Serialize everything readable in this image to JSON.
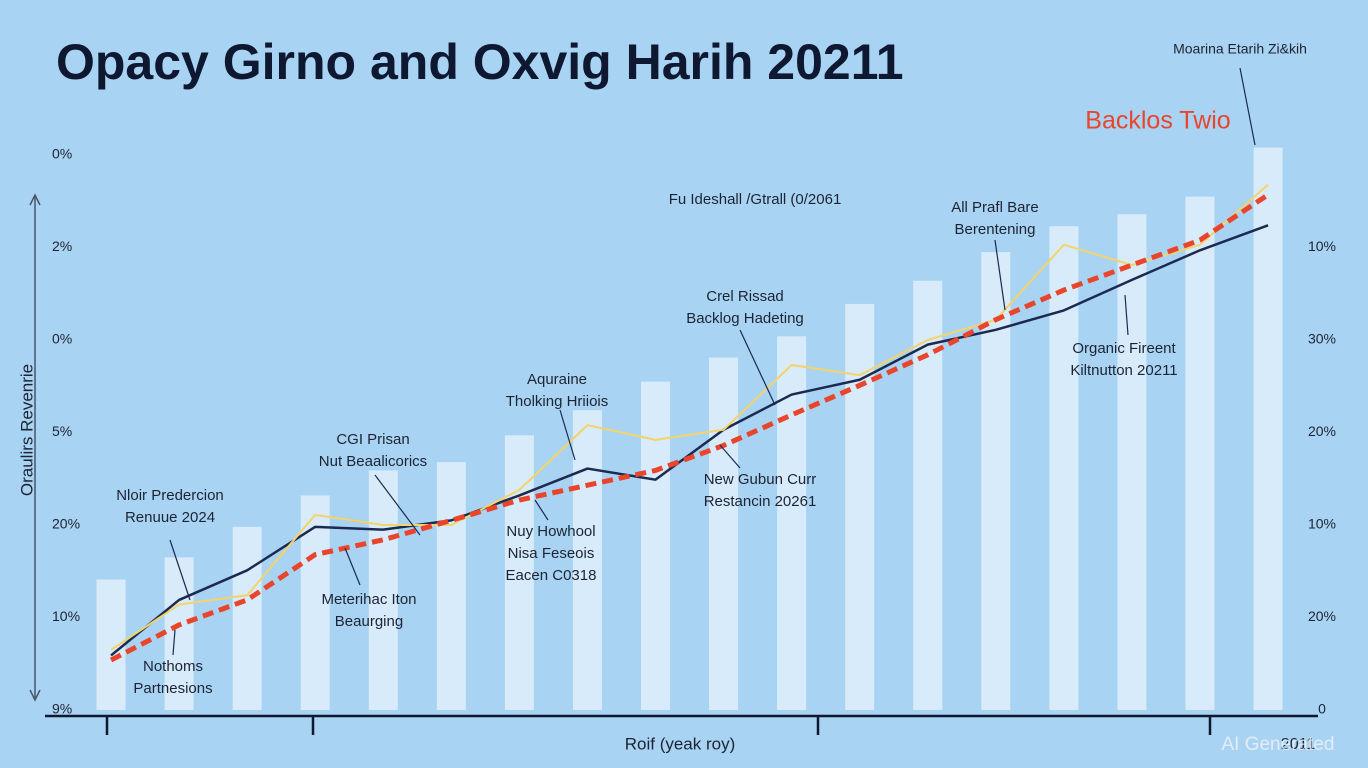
{
  "chart_data": {
    "type": "bar",
    "title": "Opacy Girno and Oxvig Harih 20211",
    "subtitle": "Fu Ideshall /Gtrall (0/2061",
    "ylabel": "Oraulirs Revenrie",
    "xlabel": "Roif (yeak roy)",
    "x_end_label": "2011",
    "watermark": "AI Generated",
    "corner_note": "Moarina Etarih Zi&kih",
    "categories": [
      null,
      null,
      null,
      null,
      null,
      null,
      null,
      null,
      null,
      null,
      null,
      null,
      null,
      null,
      null,
      null,
      null,
      null
    ],
    "values": [
      1.41,
      1.65,
      1.98,
      2.32,
      2.59,
      2.68,
      2.97,
      3.24,
      3.55,
      3.81,
      4.04,
      4.39,
      4.64,
      4.95,
      5.23,
      5.36,
      5.55,
      6.08
    ],
    "color": "#e4f1fb",
    "series": [
      {
        "color": "#1b2a4e",
        "values": [
          0.59,
          1.19,
          1.51,
          1.98,
          1.95,
          2.05,
          2.32,
          2.61,
          2.49,
          3.03,
          3.41,
          3.57,
          3.95,
          4.11,
          4.32,
          4.65,
          4.97,
          5.24
        ]
      },
      {
        "color": "#f3d36a",
        "values": [
          0.65,
          1.14,
          1.24,
          2.11,
          2.0,
          2.0,
          2.38,
          3.08,
          2.92,
          3.03,
          3.73,
          3.62,
          4.0,
          4.22,
          5.03,
          4.81,
          5.03,
          5.68
        ]
      },
      {
        "name": "Backlos Twio",
        "color": "#e8452c",
        "dashed": true,
        "values": [
          0.54,
          0.92,
          1.19,
          1.68,
          1.84,
          2.05,
          2.27,
          2.43,
          2.59,
          2.86,
          3.19,
          3.51,
          3.84,
          4.22,
          4.54,
          4.81,
          5.08,
          5.57
        ]
      }
    ],
    "ylim": [
      0,
      6.2
    ],
    "yticks": [
      {
        "value": 6,
        "label": "0%"
      },
      {
        "value": 5,
        "label": "2%"
      },
      {
        "value": 4,
        "label": "0%"
      },
      {
        "value": 3,
        "label": "5%"
      },
      {
        "value": 2,
        "label": "20%"
      },
      {
        "value": 1,
        "label": "10%"
      },
      {
        "value": 0,
        "label": "9%"
      }
    ],
    "y2lim": [
      0,
      6.2
    ],
    "y2ticks": [
      {
        "value": 5,
        "label": "10%"
      },
      {
        "value": 4,
        "label": "30%"
      },
      {
        "value": 3,
        "label": "20%"
      },
      {
        "value": 2,
        "label": "10%"
      },
      {
        "value": 1,
        "label": "20%"
      },
      0
    ],
    "annotations": [
      [
        "Nloir Predercion",
        "Renuue 2024"
      ],
      [
        "Nothoms",
        "Partnesions"
      ],
      [
        "CGI Prisan",
        "Nut Beaalicorics"
      ],
      [
        "Meterihac Iton",
        "Beaurging"
      ],
      [
        "Aquraine",
        "Tholking Hriiois"
      ],
      [
        "Nuy Howhool",
        "Nisa Feseois",
        "Eacen C0318"
      ],
      [
        "Crel Rissad",
        "Backlog Hadeting"
      ],
      [
        "New Gubun Curr",
        "Restancin 20261"
      ],
      [
        "All Prafl Bare",
        "Berentening"
      ],
      [
        "Organic Fireent",
        "Kiltnutton 20211"
      ]
    ]
  }
}
